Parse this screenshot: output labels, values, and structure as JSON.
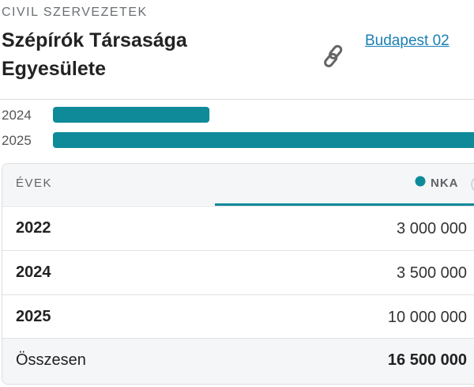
{
  "header": {
    "category": "CIVIL SZERVEZETEK",
    "title_lines": [
      "Szépírók Társasága",
      "Egyesülete"
    ],
    "link": "Budapest 02"
  },
  "chart_data": {
    "type": "bar",
    "orientation": "horizontal",
    "categories": [
      "2024",
      "2025"
    ],
    "values": [
      3500000,
      10000000
    ],
    "color": "#0e8a99",
    "xlim": [
      0,
      10000000
    ]
  },
  "table": {
    "columns": [
      "ÉVEK",
      "NKA"
    ],
    "legend_color": "#0e8a99",
    "rows": [
      [
        "2022",
        "3 000 000"
      ],
      [
        "2024",
        "3 500 000"
      ],
      [
        "2025",
        "10 000 000"
      ]
    ],
    "total": [
      "Összesen",
      "16 500 000"
    ]
  }
}
